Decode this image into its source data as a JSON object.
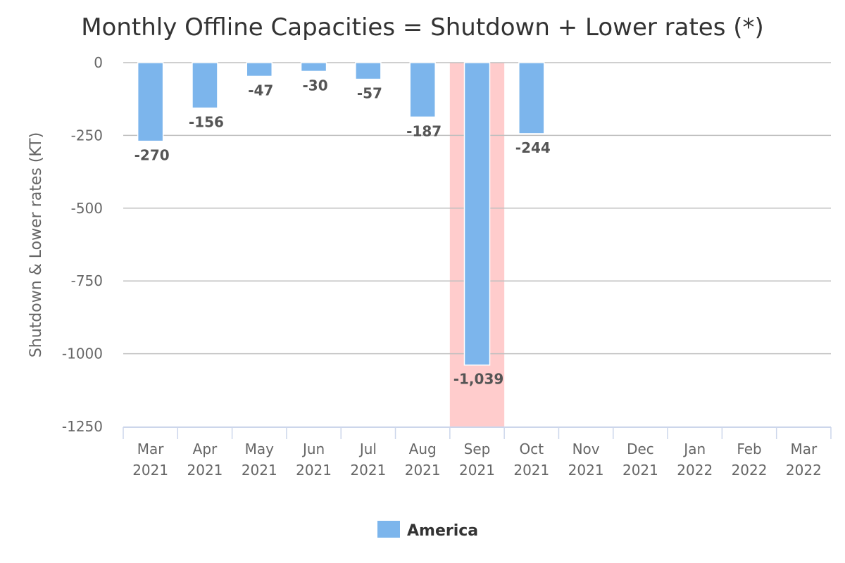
{
  "chart_data": {
    "type": "bar",
    "title": "Monthly Offline Capacities = Shutdown + Lower rates (*)",
    "ylabel": "Shutdown & Lower rates (KT)",
    "xlabel": "",
    "categories": [
      [
        "Mar",
        "2021"
      ],
      [
        "Apr",
        "2021"
      ],
      [
        "May",
        "2021"
      ],
      [
        "Jun",
        "2021"
      ],
      [
        "Jul",
        "2021"
      ],
      [
        "Aug",
        "2021"
      ],
      [
        "Sep",
        "2021"
      ],
      [
        "Oct",
        "2021"
      ],
      [
        "Nov",
        "2021"
      ],
      [
        "Dec",
        "2021"
      ],
      [
        "Jan",
        "2022"
      ],
      [
        "Feb",
        "2022"
      ],
      [
        "Mar",
        "2022"
      ]
    ],
    "series": [
      {
        "name": "America",
        "color": "#7cb5ec",
        "values": [
          -270,
          -156,
          -47,
          -30,
          -57,
          -187,
          -1039,
          -244,
          null,
          null,
          null,
          null,
          null
        ],
        "labels": [
          "-270",
          "-156",
          "-47",
          "-30",
          "-57",
          "-187",
          "-1,039",
          "-244",
          null,
          null,
          null,
          null,
          null
        ]
      }
    ],
    "ylim": [
      -1250,
      0
    ],
    "yticks": [
      0,
      -250,
      -500,
      -750,
      -1000,
      -1250
    ],
    "ytick_labels": [
      "0",
      "-250",
      "-500",
      "-750",
      "-1000",
      "-1250"
    ],
    "highlight": {
      "category_index": 6,
      "color": "#ffcccc"
    },
    "grid": true,
    "legend_position": "bottom-center",
    "gridline_color": "#bfbfbf",
    "axis_color": "#ccd6eb"
  }
}
